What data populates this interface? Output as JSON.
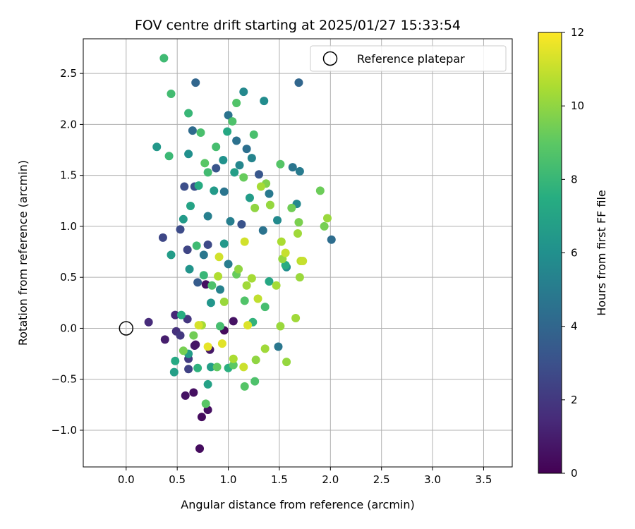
{
  "chart_data": {
    "type": "scatter",
    "title": "FOV centre drift starting at 2025/01/27 15:33:54",
    "xlabel": "Angular distance from reference (arcmin)",
    "ylabel": "Rotation from reference (arcmin)",
    "xlim": [
      -0.42,
      3.78
    ],
    "ylim": [
      -1.36,
      2.84
    ],
    "xticks": [
      "0.0",
      "0.5",
      "1.0",
      "1.5",
      "2.0",
      "2.5",
      "3.0",
      "3.5"
    ],
    "xtick_values": [
      0,
      0.5,
      1.0,
      1.5,
      2.0,
      2.5,
      3.0,
      3.5
    ],
    "yticks": [
      "−1.0",
      "−0.5",
      "0.0",
      "0.5",
      "1.0",
      "1.5",
      "2.0",
      "2.5"
    ],
    "ytick_values": [
      -1.0,
      -0.5,
      0.0,
      0.5,
      1.0,
      1.5,
      2.0,
      2.5
    ],
    "grid": true,
    "legend": {
      "placement": "top-right",
      "entries": [
        {
          "label": "Reference platepar",
          "marker": "open-circle",
          "x": 0.0,
          "y": 0.0
        }
      ]
    },
    "colorbar": {
      "label": "Hours from first FF file",
      "range": [
        0,
        12
      ],
      "ticks": [
        "0",
        "2",
        "4",
        "6",
        "8",
        "10",
        "12"
      ],
      "tick_values": [
        0,
        2,
        4,
        6,
        8,
        10,
        12
      ],
      "colormap": "viridis"
    },
    "points": [
      {
        "x": 0.72,
        "y": -1.18,
        "h": 0.4
      },
      {
        "x": 0.74,
        "y": -0.87,
        "h": 0.4
      },
      {
        "x": 0.8,
        "y": -0.8,
        "h": 0.5
      },
      {
        "x": 0.66,
        "y": -0.63,
        "h": 0.5
      },
      {
        "x": 0.58,
        "y": -0.66,
        "h": 0.6
      },
      {
        "x": 0.82,
        "y": -0.21,
        "h": 0.8
      },
      {
        "x": 0.67,
        "y": -0.17,
        "h": 0.9
      },
      {
        "x": 0.68,
        "y": -0.16,
        "h": 0.7
      },
      {
        "x": 0.78,
        "y": 0.43,
        "h": 0.5
      },
      {
        "x": 0.96,
        "y": -0.02,
        "h": 0.3
      },
      {
        "x": 1.05,
        "y": 0.07,
        "h": 0.6
      },
      {
        "x": 0.38,
        "y": -0.11,
        "h": 1.0
      },
      {
        "x": 0.22,
        "y": 0.06,
        "h": 1.5
      },
      {
        "x": 0.48,
        "y": 0.13,
        "h": 1.4
      },
      {
        "x": 0.49,
        "y": -0.03,
        "h": 1.7
      },
      {
        "x": 0.53,
        "y": -0.07,
        "h": 2.0
      },
      {
        "x": 0.61,
        "y": -0.3,
        "h": 2.1
      },
      {
        "x": 0.61,
        "y": -0.4,
        "h": 2.4
      },
      {
        "x": 0.6,
        "y": 0.09,
        "h": 1.9
      },
      {
        "x": 0.36,
        "y": 0.89,
        "h": 2.6
      },
      {
        "x": 0.53,
        "y": 0.97,
        "h": 2.8
      },
      {
        "x": 0.57,
        "y": 1.39,
        "h": 2.9
      },
      {
        "x": 0.6,
        "y": 0.77,
        "h": 2.5
      },
      {
        "x": 0.67,
        "y": 1.39,
        "h": 3.0
      },
      {
        "x": 0.88,
        "y": 1.57,
        "h": 3.2
      },
      {
        "x": 0.7,
        "y": 0.45,
        "h": 3.5
      },
      {
        "x": 0.8,
        "y": 0.82,
        "h": 2.7
      },
      {
        "x": 1.13,
        "y": 1.02,
        "h": 3.1
      },
      {
        "x": 1.3,
        "y": 1.51,
        "h": 3.3
      },
      {
        "x": 0.68,
        "y": 2.41,
        "h": 4.0
      },
      {
        "x": 1.69,
        "y": 2.41,
        "h": 4.0
      },
      {
        "x": 0.65,
        "y": 1.94,
        "h": 4.2
      },
      {
        "x": 1.0,
        "y": 2.09,
        "h": 4.6
      },
      {
        "x": 1.08,
        "y": 1.84,
        "h": 4.5
      },
      {
        "x": 1.18,
        "y": 1.76,
        "h": 4.4
      },
      {
        "x": 2.01,
        "y": 0.87,
        "h": 4.3
      },
      {
        "x": 1.49,
        "y": -0.18,
        "h": 4.8
      },
      {
        "x": 1.63,
        "y": 1.58,
        "h": 4.7
      },
      {
        "x": 1.7,
        "y": 1.54,
        "h": 5.0
      },
      {
        "x": 1.4,
        "y": 1.32,
        "h": 4.9
      },
      {
        "x": 1.34,
        "y": 0.96,
        "h": 4.6
      },
      {
        "x": 0.96,
        "y": 1.34,
        "h": 4.7
      },
      {
        "x": 1.02,
        "y": 1.05,
        "h": 5.2
      },
      {
        "x": 1.0,
        "y": 0.63,
        "h": 5.1
      },
      {
        "x": 0.76,
        "y": 0.72,
        "h": 4.8
      },
      {
        "x": 0.92,
        "y": 0.38,
        "h": 5.3
      },
      {
        "x": 1.15,
        "y": 2.32,
        "h": 5.6
      },
      {
        "x": 1.35,
        "y": 2.23,
        "h": 5.8
      },
      {
        "x": 1.23,
        "y": 1.67,
        "h": 5.4
      },
      {
        "x": 1.11,
        "y": 1.6,
        "h": 5.5
      },
      {
        "x": 1.48,
        "y": 1.06,
        "h": 5.7
      },
      {
        "x": 1.57,
        "y": 0.6,
        "h": 5.9
      },
      {
        "x": 1.67,
        "y": 1.22,
        "h": 5.6
      },
      {
        "x": 0.8,
        "y": 1.1,
        "h": 5.2
      },
      {
        "x": 0.61,
        "y": 1.71,
        "h": 6.0
      },
      {
        "x": 0.3,
        "y": 1.78,
        "h": 6.4
      },
      {
        "x": 0.44,
        "y": 0.72,
        "h": 6.6
      },
      {
        "x": 0.56,
        "y": 1.07,
        "h": 6.5
      },
      {
        "x": 0.62,
        "y": 0.58,
        "h": 6.2
      },
      {
        "x": 0.47,
        "y": -0.43,
        "h": 6.8
      },
      {
        "x": 0.61,
        "y": -0.25,
        "h": 6.6
      },
      {
        "x": 0.83,
        "y": -0.38,
        "h": 6.7
      },
      {
        "x": 0.8,
        "y": -0.55,
        "h": 6.9
      },
      {
        "x": 0.83,
        "y": 0.25,
        "h": 6.3
      },
      {
        "x": 0.96,
        "y": 0.83,
        "h": 6.4
      },
      {
        "x": 1.21,
        "y": 1.28,
        "h": 6.6
      },
      {
        "x": 1.06,
        "y": 1.53,
        "h": 6.7
      },
      {
        "x": 0.86,
        "y": 1.35,
        "h": 6.5
      },
      {
        "x": 0.95,
        "y": 1.65,
        "h": 6.1
      },
      {
        "x": 0.99,
        "y": 1.93,
        "h": 7.2
      },
      {
        "x": 0.71,
        "y": 1.4,
        "h": 7.4
      },
      {
        "x": 0.63,
        "y": 1.2,
        "h": 7.0
      },
      {
        "x": 0.48,
        "y": -0.32,
        "h": 7.3
      },
      {
        "x": 0.54,
        "y": 0.13,
        "h": 7.5
      },
      {
        "x": 0.7,
        "y": -0.39,
        "h": 7.7
      },
      {
        "x": 1.0,
        "y": -0.39,
        "h": 7.6
      },
      {
        "x": 1.24,
        "y": 0.06,
        "h": 7.8
      },
      {
        "x": 1.56,
        "y": 0.62,
        "h": 7.4
      },
      {
        "x": 1.4,
        "y": 0.46,
        "h": 7.2
      },
      {
        "x": 0.44,
        "y": 2.3,
        "h": 8.3
      },
      {
        "x": 0.37,
        "y": 2.65,
        "h": 8.2
      },
      {
        "x": 0.42,
        "y": 1.69,
        "h": 8.1
      },
      {
        "x": 0.61,
        "y": 2.11,
        "h": 8.0
      },
      {
        "x": 0.73,
        "y": 1.92,
        "h": 8.5
      },
      {
        "x": 0.88,
        "y": 1.78,
        "h": 8.4
      },
      {
        "x": 1.04,
        "y": 2.03,
        "h": 8.6
      },
      {
        "x": 1.08,
        "y": 2.21,
        "h": 8.7
      },
      {
        "x": 1.25,
        "y": 1.9,
        "h": 8.5
      },
      {
        "x": 1.51,
        "y": 1.61,
        "h": 8.8
      },
      {
        "x": 0.8,
        "y": 1.53,
        "h": 8.3
      },
      {
        "x": 0.77,
        "y": 1.62,
        "h": 8.9
      },
      {
        "x": 0.69,
        "y": 0.81,
        "h": 8.2
      },
      {
        "x": 0.76,
        "y": 0.52,
        "h": 8.0
      },
      {
        "x": 0.92,
        "y": 0.02,
        "h": 8.4
      },
      {
        "x": 0.84,
        "y": 0.42,
        "h": 8.6
      },
      {
        "x": 1.16,
        "y": -0.57,
        "h": 8.8
      },
      {
        "x": 1.26,
        "y": -0.52,
        "h": 8.6
      },
      {
        "x": 1.36,
        "y": 0.21,
        "h": 8.4
      },
      {
        "x": 1.16,
        "y": 0.27,
        "h": 8.7
      },
      {
        "x": 0.78,
        "y": -0.74,
        "h": 8.9
      },
      {
        "x": 1.05,
        "y": -0.36,
        "h": 9.0
      },
      {
        "x": 1.9,
        "y": 1.35,
        "h": 9.3
      },
      {
        "x": 1.94,
        "y": 1.0,
        "h": 9.5
      },
      {
        "x": 1.62,
        "y": 1.18,
        "h": 9.4
      },
      {
        "x": 1.69,
        "y": 1.04,
        "h": 9.6
      },
      {
        "x": 1.08,
        "y": 0.53,
        "h": 9.2
      },
      {
        "x": 0.66,
        "y": -0.07,
        "h": 9.4
      },
      {
        "x": 0.56,
        "y": -0.22,
        "h": 9.5
      },
      {
        "x": 0.89,
        "y": -0.38,
        "h": 9.1
      },
      {
        "x": 1.37,
        "y": 1.42,
        "h": 9.7
      },
      {
        "x": 1.15,
        "y": 1.48,
        "h": 9.2
      },
      {
        "x": 1.97,
        "y": 1.08,
        "h": 10.2
      },
      {
        "x": 1.68,
        "y": 0.93,
        "h": 10.3
      },
      {
        "x": 1.7,
        "y": 0.5,
        "h": 10.2
      },
      {
        "x": 1.66,
        "y": 0.1,
        "h": 10.3
      },
      {
        "x": 1.57,
        "y": -0.33,
        "h": 10.1
      },
      {
        "x": 1.41,
        "y": 1.21,
        "h": 10.1
      },
      {
        "x": 1.32,
        "y": 1.39,
        "h": 10.4
      },
      {
        "x": 1.26,
        "y": 1.18,
        "h": 10.0
      },
      {
        "x": 1.53,
        "y": 0.68,
        "h": 10.1
      },
      {
        "x": 1.52,
        "y": 0.85,
        "h": 10.5
      },
      {
        "x": 1.36,
        "y": -0.2,
        "h": 10.3
      },
      {
        "x": 1.27,
        "y": -0.31,
        "h": 10.0
      },
      {
        "x": 1.23,
        "y": 0.49,
        "h": 10.4
      },
      {
        "x": 0.9,
        "y": 0.51,
        "h": 10.6
      },
      {
        "x": 0.96,
        "y": 0.26,
        "h": 10.2
      },
      {
        "x": 0.74,
        "y": 0.03,
        "h": 10.4
      },
      {
        "x": 1.05,
        "y": -0.3,
        "h": 10.5
      },
      {
        "x": 1.18,
        "y": 0.42,
        "h": 10.3
      },
      {
        "x": 1.1,
        "y": 0.58,
        "h": 10.0
      },
      {
        "x": 1.51,
        "y": 0.02,
        "h": 10.2
      },
      {
        "x": 1.47,
        "y": 0.42,
        "h": 10.4
      },
      {
        "x": 1.71,
        "y": 0.66,
        "h": 10.8
      },
      {
        "x": 1.73,
        "y": 0.66,
        "h": 11.0
      },
      {
        "x": 1.56,
        "y": 0.74,
        "h": 11.0
      },
      {
        "x": 1.16,
        "y": 0.85,
        "h": 11.2
      },
      {
        "x": 0.91,
        "y": 0.7,
        "h": 11.2
      },
      {
        "x": 0.71,
        "y": 0.03,
        "h": 11.3
      },
      {
        "x": 0.8,
        "y": -0.18,
        "h": 11.6
      },
      {
        "x": 0.94,
        "y": -0.15,
        "h": 11.5
      },
      {
        "x": 1.15,
        "y": -0.38,
        "h": 11.1
      },
      {
        "x": 1.19,
        "y": 0.03,
        "h": 11.4
      },
      {
        "x": 1.29,
        "y": 0.29,
        "h": 10.9
      }
    ]
  }
}
